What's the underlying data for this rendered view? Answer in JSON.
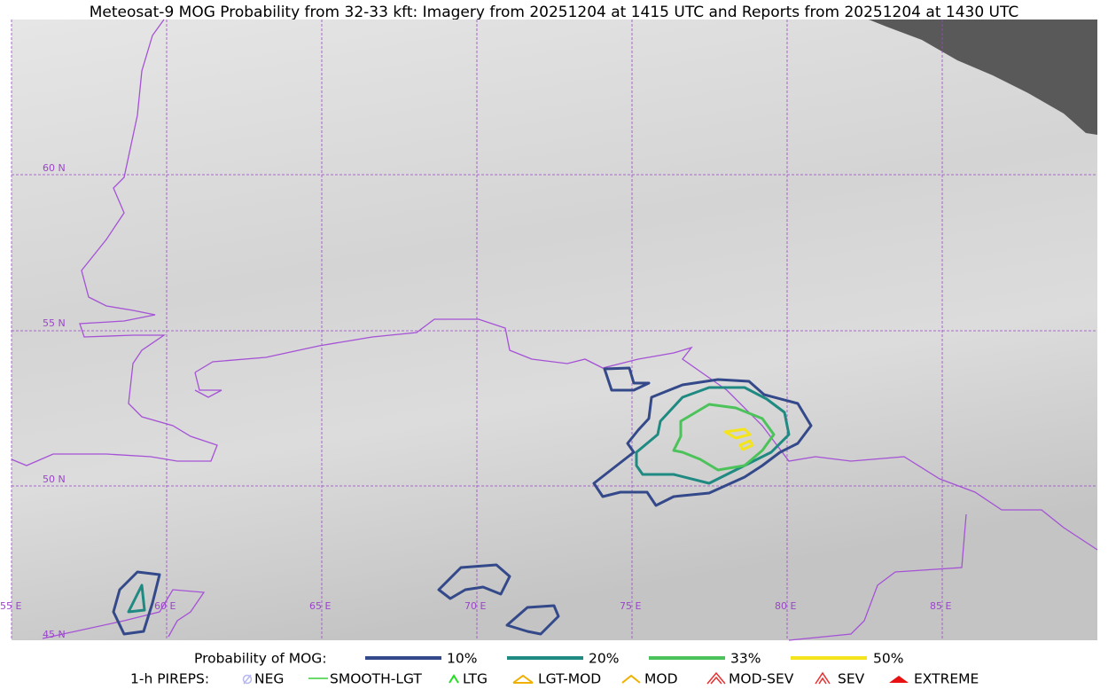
{
  "title": "Meteosat-9 MOG Probability from 32-33 kft: Imagery from 20251204 at 1415 UTC and Reports from 20251204 at 1430 UTC",
  "map": {
    "lat_labels": [
      "60 N",
      "55 N",
      "50 N",
      "45 N"
    ],
    "lon_labels": [
      "55 E",
      "60 E",
      "65 E",
      "70 E",
      "75 E",
      "80 E",
      "85 E"
    ]
  },
  "legend": {
    "probability": {
      "title": "Probability of MOG:",
      "levels": [
        {
          "label": "10%",
          "color": "#34498a"
        },
        {
          "label": "20%",
          "color": "#1e8a82"
        },
        {
          "label": "33%",
          "color": "#4cc35a"
        },
        {
          "label": "50%",
          "color": "#f4e41c"
        }
      ]
    },
    "pireps": {
      "title": "1-h PIREPS:",
      "items": [
        "NEG",
        "SMOOTH-LGT",
        "LTG",
        "LGT-MOD",
        "MOD",
        "MOD-SEV",
        "SEV",
        "EXTREME"
      ]
    }
  }
}
